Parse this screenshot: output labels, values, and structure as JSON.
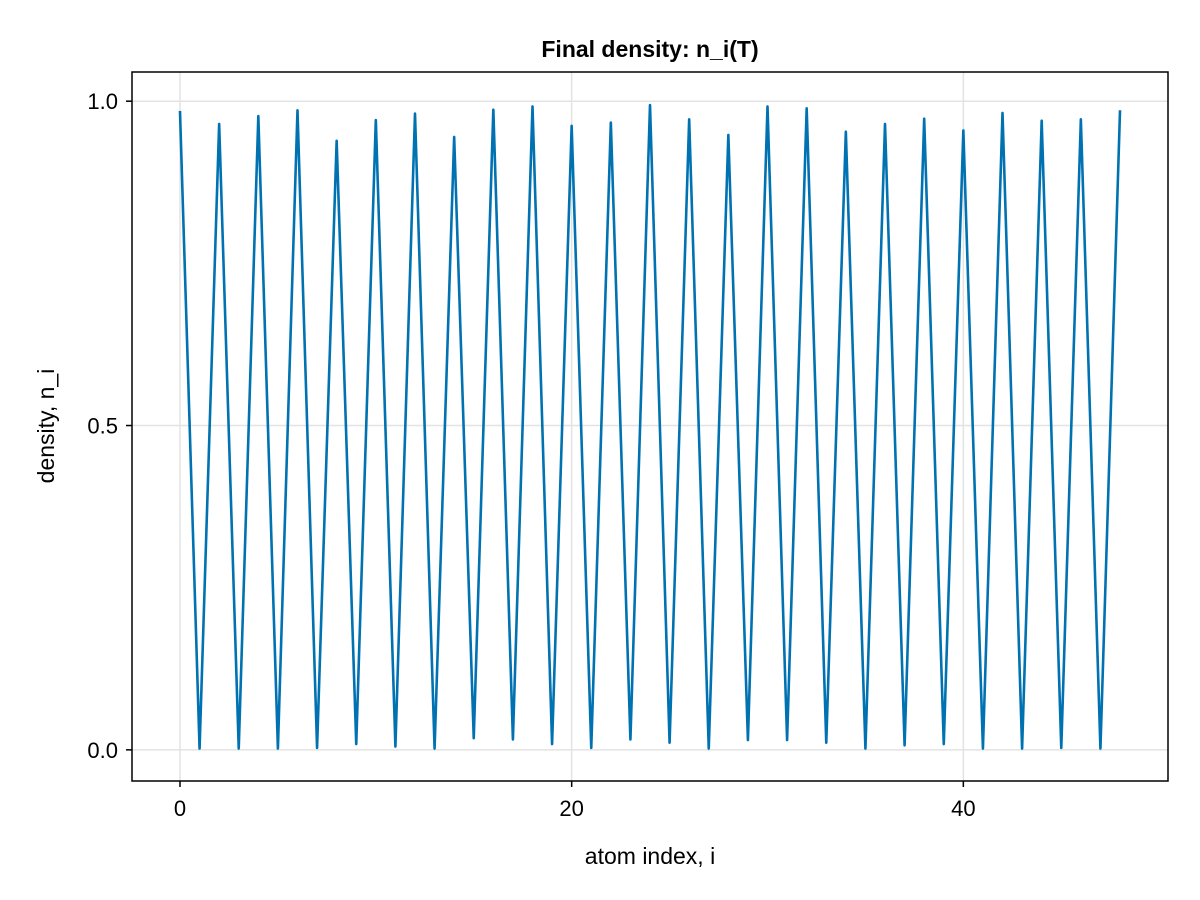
{
  "chart_data": {
    "type": "line",
    "title": "Final density: n_i(T)",
    "xlabel": "atom index, i",
    "ylabel": "density, n_i",
    "xlim": [
      -2.45,
      50.45
    ],
    "ylim": [
      -0.048,
      1.045
    ],
    "xticks": [
      0,
      20,
      40
    ],
    "xtick_labels": [
      "0",
      "20",
      "40"
    ],
    "yticks": [
      0.0,
      0.5,
      1.0
    ],
    "ytick_labels": [
      "0.0",
      "0.5",
      "1.0"
    ],
    "grid": true,
    "legend": "none",
    "series": [
      {
        "color": "#0072b2",
        "x": [
          0,
          1,
          2,
          3,
          4,
          5,
          6,
          7,
          8,
          9,
          10,
          11,
          12,
          13,
          14,
          15,
          16,
          17,
          18,
          19,
          20,
          21,
          22,
          23,
          24,
          25,
          26,
          27,
          28,
          29,
          30,
          31,
          32,
          33,
          34,
          35,
          36,
          37,
          38,
          39,
          40,
          41,
          42,
          43,
          44,
          45,
          46,
          47,
          48
        ],
        "y": [
          0.985,
          0.002,
          0.965,
          0.002,
          0.977,
          0.002,
          0.986,
          0.003,
          0.939,
          0.009,
          0.971,
          0.005,
          0.981,
          0.002,
          0.945,
          0.018,
          0.987,
          0.016,
          0.992,
          0.009,
          0.962,
          0.003,
          0.967,
          0.016,
          0.994,
          0.011,
          0.972,
          0.002,
          0.948,
          0.015,
          0.992,
          0.015,
          0.989,
          0.011,
          0.953,
          0.002,
          0.965,
          0.007,
          0.973,
          0.009,
          0.955,
          0.002,
          0.982,
          0.002,
          0.97,
          0.003,
          0.972,
          0.002,
          0.986
        ]
      }
    ]
  }
}
